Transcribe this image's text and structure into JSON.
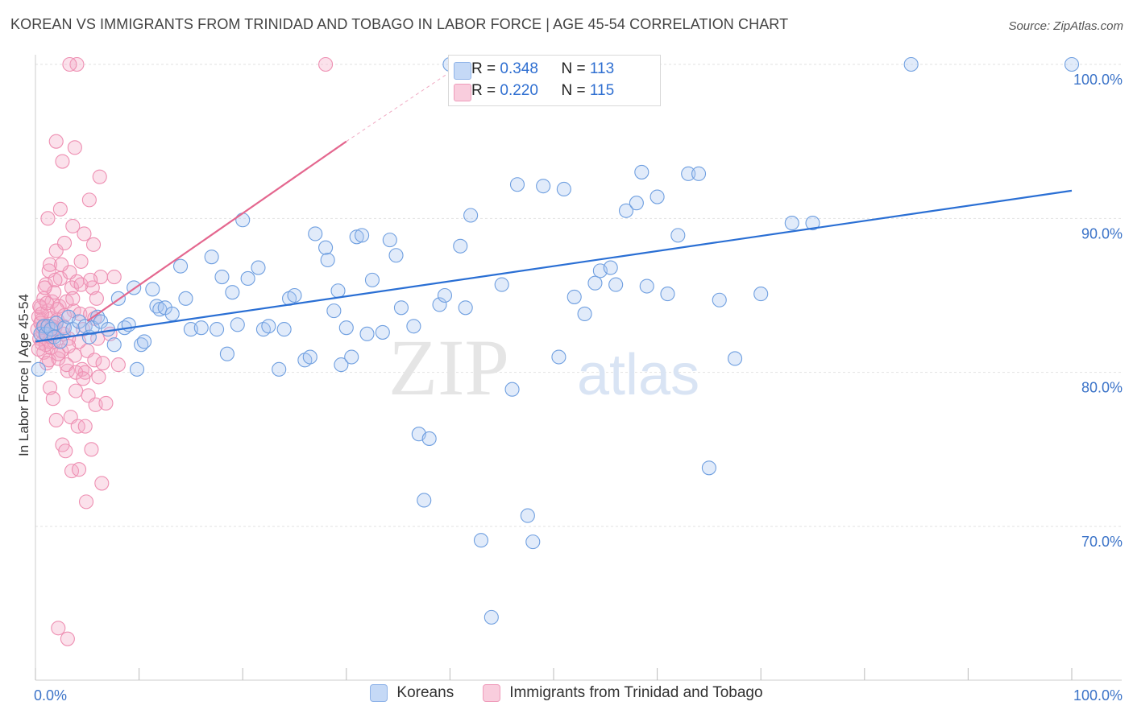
{
  "title": "KOREAN VS IMMIGRANTS FROM TRINIDAD AND TOBAGO IN LABOR FORCE | AGE 45-54 CORRELATION CHART",
  "source": "Source: ZipAtlas.com",
  "watermark": {
    "zip": "ZIP",
    "atlas": "atlas"
  },
  "stats": [
    {
      "r_label": "R = ",
      "r": "0.348",
      "n_label": "N = ",
      "n": "113",
      "color": "#6a9de0"
    },
    {
      "r_label": "R = ",
      "r": "0.220",
      "n_label": "N = ",
      "n": "115",
      "color": "#ec7ca4"
    }
  ],
  "legend": [
    {
      "label": "Koreans",
      "color": "#6a9de0"
    },
    {
      "label": "Immigrants from Trinidad and Tobago",
      "color": "#ec7ca4"
    }
  ],
  "chart_data": {
    "type": "scatter",
    "title": "KOREAN VS IMMIGRANTS FROM TRINIDAD AND TOBAGO IN LABOR FORCE | AGE 45-54 CORRELATION CHART",
    "xlabel": "",
    "ylabel": "In Labor Force | Age 45-54",
    "xlim": [
      0,
      100
    ],
    "ylim": [
      60,
      100
    ],
    "x_tick_labels": [
      "0.0%",
      "100.0%"
    ],
    "y_ticks": [
      70,
      80,
      90,
      100
    ],
    "y_tick_labels": [
      "70.0%",
      "80.0%",
      "90.0%",
      "100.0%"
    ],
    "series": [
      {
        "name": "Koreans",
        "color": "#6a9de0",
        "trend": {
          "x": [
            0,
            100
          ],
          "y": [
            82.0,
            91.8
          ]
        },
        "points": [
          [
            0.5,
            82.5
          ],
          [
            0.8,
            83.0
          ],
          [
            1.0,
            82.5
          ],
          [
            1.2,
            83.0
          ],
          [
            1.5,
            82.8
          ],
          [
            1.8,
            82.3
          ],
          [
            2.0,
            83.2
          ],
          [
            2.4,
            82.0
          ],
          [
            2.8,
            82.9
          ],
          [
            3.2,
            83.6
          ],
          [
            3.6,
            82.8
          ],
          [
            4.2,
            83.3
          ],
          [
            4.8,
            83.0
          ],
          [
            5.2,
            82.3
          ],
          [
            5.5,
            82.9
          ],
          [
            6.0,
            83.6
          ],
          [
            6.3,
            83.3
          ],
          [
            7.0,
            82.8
          ],
          [
            7.6,
            81.8
          ],
          [
            8.0,
            84.8
          ],
          [
            8.6,
            82.9
          ],
          [
            9.0,
            83.1
          ],
          [
            9.5,
            85.5
          ],
          [
            9.8,
            80.2
          ],
          [
            10.2,
            81.8
          ],
          [
            10.5,
            82.0
          ],
          [
            11.3,
            85.4
          ],
          [
            11.7,
            84.3
          ],
          [
            12.0,
            84.1
          ],
          [
            12.5,
            84.2
          ],
          [
            13.2,
            83.8
          ],
          [
            14.0,
            86.9
          ],
          [
            14.5,
            84.8
          ],
          [
            15.0,
            82.8
          ],
          [
            16.0,
            82.9
          ],
          [
            17.0,
            87.5
          ],
          [
            17.5,
            82.8
          ],
          [
            18.0,
            86.2
          ],
          [
            18.5,
            81.2
          ],
          [
            19.0,
            85.2
          ],
          [
            19.5,
            83.1
          ],
          [
            20.0,
            89.9
          ],
          [
            20.5,
            86.1
          ],
          [
            21.5,
            86.8
          ],
          [
            22.0,
            82.8
          ],
          [
            22.5,
            83.0
          ],
          [
            23.5,
            80.2
          ],
          [
            24.0,
            82.8
          ],
          [
            24.5,
            84.8
          ],
          [
            25.0,
            85.0
          ],
          [
            26.0,
            80.8
          ],
          [
            26.5,
            81.0
          ],
          [
            27.0,
            89.0
          ],
          [
            28.0,
            88.1
          ],
          [
            28.2,
            87.3
          ],
          [
            28.8,
            84.0
          ],
          [
            29.2,
            85.3
          ],
          [
            29.5,
            80.5
          ],
          [
            30.0,
            82.9
          ],
          [
            30.5,
            81.0
          ],
          [
            31.0,
            88.8
          ],
          [
            31.5,
            88.9
          ],
          [
            32.0,
            82.5
          ],
          [
            32.5,
            86.0
          ],
          [
            33.5,
            82.6
          ],
          [
            34.2,
            88.6
          ],
          [
            34.8,
            87.6
          ],
          [
            35.3,
            84.2
          ],
          [
            36.5,
            83.0
          ],
          [
            37.0,
            76.0
          ],
          [
            37.5,
            71.7
          ],
          [
            38.0,
            75.7
          ],
          [
            39.0,
            84.4
          ],
          [
            39.5,
            85.0
          ],
          [
            40.0,
            100.0
          ],
          [
            41.0,
            88.2
          ],
          [
            41.5,
            84.2
          ],
          [
            41.8,
            98.6
          ],
          [
            42.0,
            90.2
          ],
          [
            43.0,
            69.1
          ],
          [
            44.0,
            64.1
          ],
          [
            45.0,
            85.7
          ],
          [
            46.0,
            78.9
          ],
          [
            46.5,
            92.2
          ],
          [
            47.5,
            70.7
          ],
          [
            48.0,
            69.0
          ],
          [
            49.0,
            92.1
          ],
          [
            50.5,
            81.0
          ],
          [
            51.0,
            91.9
          ],
          [
            52.0,
            84.9
          ],
          [
            53.0,
            83.8
          ],
          [
            54.0,
            85.8
          ],
          [
            54.5,
            86.6
          ],
          [
            55.5,
            86.8
          ],
          [
            56.0,
            85.7
          ],
          [
            57.0,
            90.5
          ],
          [
            58.0,
            91.0
          ],
          [
            58.5,
            93.0
          ],
          [
            59.0,
            85.6
          ],
          [
            60.0,
            91.4
          ],
          [
            61.0,
            85.1
          ],
          [
            62.0,
            88.9
          ],
          [
            63.0,
            92.9
          ],
          [
            64.0,
            92.9
          ],
          [
            65.0,
            73.8
          ],
          [
            66.0,
            84.7
          ],
          [
            67.5,
            80.9
          ],
          [
            70.0,
            85.1
          ],
          [
            73.0,
            89.7
          ],
          [
            75.0,
            89.7
          ],
          [
            84.5,
            100.0
          ],
          [
            100.0,
            100.0
          ],
          [
            0.3,
            80.2
          ]
        ]
      },
      {
        "name": "Immigrants from Trinidad and Tobago",
        "color": "#ec7ca4",
        "trend": {
          "x": [
            0,
            30
          ],
          "y": [
            81.0,
            95.0
          ]
        },
        "trend_dashed": {
          "x": [
            30,
            40
          ],
          "y": [
            95.0,
            99.5
          ]
        },
        "points": [
          [
            0.2,
            82.8
          ],
          [
            0.3,
            83.6
          ],
          [
            0.4,
            82.2
          ],
          [
            0.5,
            84.2
          ],
          [
            0.6,
            81.9
          ],
          [
            0.6,
            83.4
          ],
          [
            0.7,
            82.6
          ],
          [
            0.8,
            84.8
          ],
          [
            0.8,
            81.3
          ],
          [
            0.9,
            83.0
          ],
          [
            1.0,
            85.7
          ],
          [
            1.1,
            82.4
          ],
          [
            1.1,
            80.6
          ],
          [
            1.2,
            84.0
          ],
          [
            1.3,
            86.6
          ],
          [
            1.3,
            82.0
          ],
          [
            1.4,
            79.0
          ],
          [
            1.5,
            83.5
          ],
          [
            1.5,
            81.6
          ],
          [
            1.6,
            84.6
          ],
          [
            1.7,
            78.3
          ],
          [
            1.8,
            85.2
          ],
          [
            1.9,
            82.9
          ],
          [
            2.0,
            76.9
          ],
          [
            2.0,
            87.9
          ],
          [
            2.1,
            83.4
          ],
          [
            2.2,
            80.9
          ],
          [
            2.3,
            84.3
          ],
          [
            2.4,
            86.1
          ],
          [
            2.5,
            81.4
          ],
          [
            2.6,
            75.3
          ],
          [
            2.7,
            83.0
          ],
          [
            2.8,
            88.4
          ],
          [
            2.9,
            74.9
          ],
          [
            3.0,
            84.6
          ],
          [
            3.1,
            80.1
          ],
          [
            3.2,
            82.2
          ],
          [
            3.3,
            86.5
          ],
          [
            3.4,
            77.1
          ],
          [
            3.5,
            73.6
          ],
          [
            3.6,
            89.5
          ],
          [
            3.7,
            84.0
          ],
          [
            3.8,
            81.1
          ],
          [
            3.9,
            78.8
          ],
          [
            4.0,
            85.9
          ],
          [
            4.1,
            76.5
          ],
          [
            4.2,
            73.7
          ],
          [
            4.3,
            83.8
          ],
          [
            4.4,
            87.2
          ],
          [
            4.5,
            80.2
          ],
          [
            4.6,
            82.8
          ],
          [
            4.7,
            89.0
          ],
          [
            4.8,
            76.5
          ],
          [
            4.9,
            71.6
          ],
          [
            5.0,
            81.4
          ],
          [
            5.1,
            78.5
          ],
          [
            5.2,
            91.2
          ],
          [
            5.3,
            83.8
          ],
          [
            5.4,
            75.0
          ],
          [
            5.5,
            85.5
          ],
          [
            5.6,
            88.3
          ],
          [
            5.7,
            80.8
          ],
          [
            5.8,
            77.9
          ],
          [
            5.9,
            84.8
          ],
          [
            6.0,
            82.2
          ],
          [
            6.1,
            79.7
          ],
          [
            6.2,
            92.7
          ],
          [
            6.3,
            86.2
          ],
          [
            6.4,
            72.8
          ],
          [
            6.5,
            80.6
          ],
          [
            1.2,
            90.0
          ],
          [
            2.4,
            90.6
          ],
          [
            2.6,
            93.7
          ],
          [
            4.0,
            100.0
          ],
          [
            3.3,
            100.0
          ],
          [
            28.0,
            100.0
          ],
          [
            2.0,
            95.0
          ],
          [
            3.8,
            94.6
          ],
          [
            2.2,
            63.4
          ],
          [
            3.1,
            62.7
          ],
          [
            1.4,
            87.0
          ],
          [
            0.9,
            85.5
          ],
          [
            1.8,
            82.0
          ],
          [
            2.7,
            82.5
          ],
          [
            3.5,
            85.5
          ],
          [
            4.4,
            85.7
          ],
          [
            0.5,
            83.2
          ],
          [
            1.0,
            81.8
          ],
          [
            1.6,
            83.0
          ],
          [
            2.1,
            84.1
          ],
          [
            0.4,
            84.3
          ],
          [
            0.7,
            82.9
          ],
          [
            1.3,
            80.8
          ],
          [
            1.9,
            86.0
          ],
          [
            2.5,
            87.0
          ],
          [
            3.0,
            80.5
          ],
          [
            3.6,
            84.8
          ],
          [
            4.2,
            82.0
          ],
          [
            4.8,
            80.0
          ],
          [
            5.3,
            86.0
          ],
          [
            0.3,
            81.5
          ],
          [
            0.6,
            83.8
          ],
          [
            1.1,
            84.5
          ],
          [
            1.5,
            82.3
          ],
          [
            2.2,
            81.2
          ],
          [
            2.8,
            83.7
          ],
          [
            3.2,
            81.7
          ],
          [
            3.9,
            80.0
          ],
          [
            4.6,
            79.6
          ],
          [
            5.7,
            83.5
          ],
          [
            6.8,
            78.0
          ],
          [
            7.2,
            82.5
          ],
          [
            7.6,
            86.2
          ],
          [
            8.0,
            80.5
          ],
          [
            1.7,
            82.8
          ]
        ]
      }
    ]
  }
}
